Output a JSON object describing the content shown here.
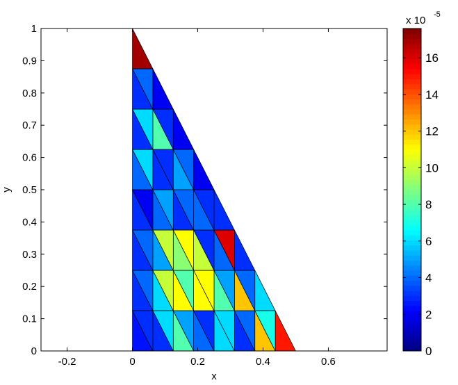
{
  "chart_data": {
    "type": "trimesh",
    "x_label": "x",
    "y_label": "y",
    "xlim": [
      -0.28,
      0.78
    ],
    "ylim": [
      0,
      1
    ],
    "xticks": [
      -0.2,
      0,
      0.2,
      0.4,
      0.6
    ],
    "yticks": [
      0,
      0.1,
      0.2,
      0.3,
      0.4,
      0.5,
      0.6,
      0.7,
      0.8,
      0.9,
      1
    ],
    "colormap": "jet",
    "clim": [
      0,
      17.6
    ],
    "colorbar_ticks": [
      0,
      2,
      4,
      6,
      8,
      10,
      12,
      14,
      16
    ],
    "colorbar_label": "x 10",
    "colorbar_exponent": "-5",
    "nodes_x": [
      0,
      0.0625,
      0.125,
      0.1875,
      0.25,
      0.3125,
      0.375,
      0.4375,
      0.5,
      0,
      0.0625,
      0.125,
      0.1875,
      0.25,
      0.3125,
      0.375,
      0.4375,
      0,
      0.0625,
      0.125,
      0.1875,
      0.25,
      0.3125,
      0.375,
      0,
      0.0625,
      0.125,
      0.1875,
      0.25,
      0.3125,
      0,
      0.0625,
      0.125,
      0.1875,
      0.25,
      0,
      0.0625,
      0.125,
      0.1875,
      0,
      0.0625,
      0.125,
      0,
      0.0625,
      0
    ],
    "nodes_y": [
      0,
      0,
      0,
      0,
      0,
      0,
      0,
      0,
      0,
      0.125,
      0.125,
      0.125,
      0.125,
      0.125,
      0.125,
      0.125,
      0.125,
      0.25,
      0.25,
      0.25,
      0.25,
      0.25,
      0.25,
      0.25,
      0.375,
      0.375,
      0.375,
      0.375,
      0.375,
      0.375,
      0.5,
      0.5,
      0.5,
      0.5,
      0.5,
      0.625,
      0.625,
      0.625,
      0.625,
      0.75,
      0.75,
      0.75,
      0.875,
      0.875,
      1
    ],
    "triangles": [
      [
        0,
        1,
        9
      ],
      [
        1,
        2,
        10
      ],
      [
        2,
        3,
        11
      ],
      [
        3,
        4,
        12
      ],
      [
        4,
        5,
        13
      ],
      [
        5,
        6,
        14
      ],
      [
        6,
        7,
        15
      ],
      [
        7,
        8,
        16
      ],
      [
        1,
        10,
        9
      ],
      [
        2,
        11,
        10
      ],
      [
        3,
        12,
        11
      ],
      [
        4,
        13,
        12
      ],
      [
        5,
        14,
        13
      ],
      [
        6,
        15,
        14
      ],
      [
        7,
        16,
        15
      ],
      [
        9,
        10,
        17
      ],
      [
        10,
        11,
        18
      ],
      [
        11,
        12,
        19
      ],
      [
        12,
        13,
        20
      ],
      [
        13,
        14,
        21
      ],
      [
        14,
        15,
        22
      ],
      [
        15,
        16,
        23
      ],
      [
        10,
        18,
        17
      ],
      [
        11,
        19,
        18
      ],
      [
        12,
        20,
        19
      ],
      [
        13,
        21,
        20
      ],
      [
        14,
        22,
        21
      ],
      [
        15,
        23,
        22
      ],
      [
        17,
        18,
        24
      ],
      [
        18,
        19,
        25
      ],
      [
        19,
        20,
        26
      ],
      [
        20,
        21,
        27
      ],
      [
        21,
        22,
        28
      ],
      [
        22,
        23,
        29
      ],
      [
        18,
        25,
        24
      ],
      [
        19,
        26,
        25
      ],
      [
        20,
        27,
        26
      ],
      [
        21,
        28,
        27
      ],
      [
        22,
        29,
        28
      ],
      [
        24,
        25,
        30
      ],
      [
        25,
        26,
        31
      ],
      [
        26,
        27,
        32
      ],
      [
        27,
        28,
        33
      ],
      [
        28,
        29,
        34
      ],
      [
        25,
        31,
        30
      ],
      [
        26,
        32,
        31
      ],
      [
        27,
        33,
        32
      ],
      [
        28,
        34,
        33
      ],
      [
        30,
        31,
        35
      ],
      [
        31,
        32,
        36
      ],
      [
        32,
        33,
        37
      ],
      [
        33,
        34,
        38
      ],
      [
        31,
        36,
        35
      ],
      [
        32,
        37,
        36
      ],
      [
        33,
        38,
        37
      ],
      [
        35,
        36,
        39
      ],
      [
        36,
        37,
        40
      ],
      [
        37,
        38,
        41
      ],
      [
        36,
        40,
        39
      ],
      [
        37,
        41,
        40
      ],
      [
        39,
        40,
        42
      ],
      [
        40,
        41,
        43
      ],
      [
        40,
        43,
        42
      ],
      [
        42,
        43,
        44
      ]
    ],
    "values": [
      2.5,
      3,
      8,
      4,
      6,
      3,
      12,
      15,
      3,
      6,
      5,
      3,
      6,
      4,
      7,
      3,
      6,
      11,
      11,
      8,
      12,
      6,
      4,
      10,
      8,
      11,
      5,
      4,
      3,
      5,
      9,
      10,
      4,
      3,
      4,
      10,
      11,
      3,
      16,
      3,
      4,
      3,
      4,
      3,
      2,
      5,
      4,
      3,
      4,
      3,
      5,
      2,
      6,
      3,
      4,
      3,
      8,
      2,
      6,
      3,
      3,
      2,
      4,
      17
    ]
  }
}
